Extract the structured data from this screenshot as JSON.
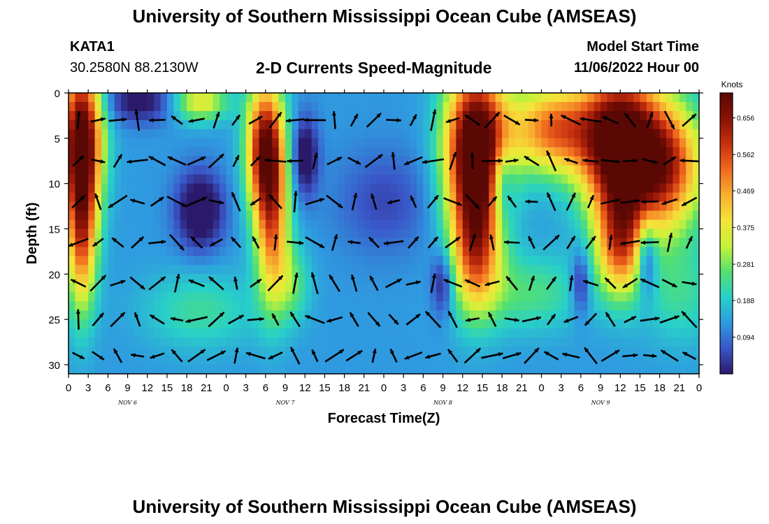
{
  "header": {
    "title": "University of Southern Mississippi Ocean Cube (AMSEAS)",
    "station": "KATA1",
    "coords": "30.2580N  88.2130W",
    "subtitle": "2-D Currents Speed-Magnitude",
    "model_label": "Model Start Time",
    "model_time": "11/06/2022 Hour 00"
  },
  "footer": {
    "title_repeat": "University of Southern Mississippi Ocean Cube (AMSEAS)"
  },
  "colors": {
    "arrow": "#000000",
    "scale": [
      "#2b1a6b",
      "#3a56c8",
      "#2f9be0",
      "#28d0c8",
      "#54e070",
      "#c6f23a",
      "#f4e43a",
      "#f8b030",
      "#f06a1e",
      "#c6300e",
      "#8a1206",
      "#5a0804"
    ]
  },
  "chart_data": {
    "type": "heatmap",
    "title": "2-D Currents Speed-Magnitude",
    "xlabel": "Forecast Time(Z)",
    "ylabel": "Depth (ft)",
    "x_ticks": [
      "0",
      "3",
      "6",
      "9",
      "12",
      "15",
      "18",
      "21",
      "0",
      "3",
      "6",
      "9",
      "12",
      "15",
      "18",
      "21",
      "0",
      "3",
      "6",
      "9",
      "12",
      "15",
      "18",
      "21",
      "0",
      "3",
      "6",
      "9",
      "12",
      "15",
      "18",
      "21",
      "0"
    ],
    "x_range_hours": [
      0,
      96
    ],
    "day_labels": [
      {
        "label": "NOV 6",
        "hour": 9
      },
      {
        "label": "NOV 7",
        "hour": 33
      },
      {
        "label": "NOV 8",
        "hour": 57
      },
      {
        "label": "NOV 9",
        "hour": 81
      }
    ],
    "y_ticks": [
      0,
      5,
      10,
      15,
      20,
      25,
      30
    ],
    "ylim": [
      0,
      31
    ],
    "colorbar": {
      "unit": "Knots",
      "ticks": [
        "0.656",
        "0.562",
        "0.469",
        "0.375",
        "0.281",
        "0.188",
        "0.094"
      ],
      "tick_values": [
        0.656,
        0.562,
        0.469,
        0.375,
        0.281,
        0.188,
        0.094
      ],
      "range": [
        0.0,
        0.72
      ]
    },
    "speed_blobs": [
      {
        "x": 2,
        "y": 5,
        "sx": 2.2,
        "sy": 6,
        "v": 0.62
      },
      {
        "x": 2,
        "y": 16,
        "sx": 1.6,
        "sy": 6,
        "v": 0.38
      },
      {
        "x": 11,
        "y": 1,
        "sx": 4,
        "sy": 1.6,
        "v": -0.15
      },
      {
        "x": 20,
        "y": 1,
        "sx": 3,
        "sy": 1.5,
        "v": 0.25
      },
      {
        "x": 20,
        "y": 13,
        "sx": 2.5,
        "sy": 3,
        "v": -0.2
      },
      {
        "x": 30,
        "y": 6,
        "sx": 2,
        "sy": 5,
        "v": 0.55
      },
      {
        "x": 31,
        "y": 15,
        "sx": 1.8,
        "sy": 6,
        "v": 0.35
      },
      {
        "x": 34,
        "y": 21,
        "sx": 2,
        "sy": 3,
        "v": 0.12
      },
      {
        "x": 36,
        "y": 7,
        "sx": 1.4,
        "sy": 3,
        "v": -0.18
      },
      {
        "x": 62,
        "y": 6,
        "sx": 3.2,
        "sy": 6,
        "v": 0.7
      },
      {
        "x": 62,
        "y": 17,
        "sx": 2.6,
        "sy": 5,
        "v": 0.4
      },
      {
        "x": 66,
        "y": 10,
        "sx": 1.2,
        "sy": 3,
        "v": -0.18
      },
      {
        "x": 57,
        "y": 21,
        "sx": 1.2,
        "sy": 2.5,
        "v": -0.15
      },
      {
        "x": 74,
        "y": 4,
        "sx": 5,
        "sy": 3.5,
        "v": 0.4
      },
      {
        "x": 84,
        "y": 6,
        "sx": 4,
        "sy": 6,
        "v": 0.65
      },
      {
        "x": 84,
        "y": 17,
        "sx": 2.5,
        "sy": 4,
        "v": 0.35
      },
      {
        "x": 91,
        "y": 8,
        "sx": 4,
        "sy": 5,
        "v": 0.45
      },
      {
        "x": 88,
        "y": 18,
        "sx": 1.1,
        "sy": 3,
        "v": -0.2
      },
      {
        "x": 78,
        "y": 21,
        "sx": 1,
        "sy": 2.5,
        "v": -0.15
      },
      {
        "x": 48,
        "y": 12,
        "sx": 5,
        "sy": 4,
        "v": -0.08
      },
      {
        "x": 20,
        "y": 24,
        "sx": 6,
        "sy": 3,
        "v": 0.1
      },
      {
        "x": 70,
        "y": 22,
        "sx": 6,
        "sy": 3,
        "v": 0.12
      },
      {
        "x": 93,
        "y": 22,
        "sx": 4,
        "sy": 4,
        "v": 0.1
      }
    ],
    "base_speed": 0.13,
    "vector_grid": {
      "hours": [
        1.5,
        4.5,
        7.5,
        10.5,
        13.5,
        16.5,
        19.5,
        22.5,
        25.5,
        28.5,
        31.5,
        34.5,
        37.5,
        40.5,
        43.5,
        46.5,
        49.5,
        52.5,
        55.5,
        58.5,
        61.5,
        64.5,
        67.5,
        70.5,
        73.5,
        76.5,
        79.5,
        82.5,
        85.5,
        88.5,
        91.5,
        94.5
      ],
      "depths": [
        3,
        7.5,
        12,
        16.5,
        21,
        25,
        29
      ]
    }
  }
}
